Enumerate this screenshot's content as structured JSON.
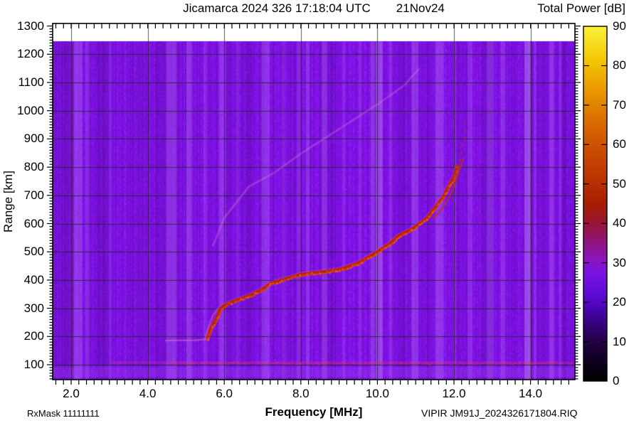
{
  "header": {
    "title_left": "Jicamarca 2024 326 17:18:04 UTC",
    "title_right": "21Nov24",
    "colorbar_title": "Total Power [dB]"
  },
  "axes": {
    "x_label": "Frequency [MHz]",
    "y_label": "Range [km]",
    "x_tick_labels": [
      "2.0",
      "4.0",
      "6.0",
      "8.0",
      "10.0",
      "12.0",
      "14.0"
    ],
    "y_tick_labels": [
      "100",
      "200",
      "300",
      "400",
      "500",
      "600",
      "700",
      "800",
      "900",
      "1000",
      "1100",
      "1200",
      "1300"
    ],
    "colorbar_tick_labels": [
      "0",
      "10",
      "20",
      "30",
      "40",
      "50",
      "60",
      "70",
      "80",
      "90"
    ]
  },
  "footer": {
    "rx_mask": "RxMask 11111111",
    "file_label": "VIPIR  JM91J_2024326171804.RIQ"
  },
  "chart_data": {
    "type": "heatmap",
    "subtype": "ionogram",
    "title": "Jicamarca 2024 326 17:18:04 UTC 21Nov24",
    "xlabel": "Frequency [MHz]",
    "ylabel": "Range [km]",
    "zlabel": "Total Power [dB]",
    "xlim": [
      1.52,
      15.16
    ],
    "ylim": [
      47,
      1309
    ],
    "zlim": [
      0,
      90
    ],
    "x_major_ticks": [
      2,
      4,
      6,
      8,
      10,
      12,
      14
    ],
    "y_major_ticks": [
      100,
      200,
      300,
      400,
      500,
      600,
      700,
      800,
      900,
      1000,
      1100,
      1200,
      1300
    ],
    "z_ticks": [
      0,
      10,
      20,
      30,
      40,
      50,
      60,
      70,
      80,
      90
    ],
    "x_minor_step": 0.2,
    "y_minor_step": 10,
    "grid": {
      "x_step_mhz": 2,
      "y_step_km": 100,
      "color": "rgba(25,40,18,0.75)"
    },
    "background_level_db": 22,
    "data_top_km": 1245,
    "colormap": [
      [
        0.0,
        "#000000"
      ],
      [
        0.06,
        "#10001f"
      ],
      [
        0.12,
        "#26004f"
      ],
      [
        0.17,
        "#3b0288"
      ],
      [
        0.22,
        "#5106c2"
      ],
      [
        0.27,
        "#6b0edd"
      ],
      [
        0.31,
        "#7d13dd"
      ],
      [
        0.345,
        "#8a16bb"
      ],
      [
        0.38,
        "#90148c"
      ],
      [
        0.42,
        "#951356"
      ],
      [
        0.46,
        "#9d1722"
      ],
      [
        0.5,
        "#a81e04"
      ],
      [
        0.58,
        "#bc3600"
      ],
      [
        0.66,
        "#cc4f00"
      ],
      [
        0.74,
        "#dc7000"
      ],
      [
        0.82,
        "#ea9800"
      ],
      [
        0.9,
        "#f4c404"
      ],
      [
        1.0,
        "#fbf238"
      ]
    ],
    "series": {
      "f_trace_flat": [
        [
          4.45,
          185
        ],
        [
          4.8,
          186
        ],
        [
          5.2,
          186
        ],
        [
          5.55,
          190
        ]
      ],
      "f_trace": [
        [
          5.55,
          190
        ],
        [
          5.65,
          230
        ],
        [
          5.75,
          252
        ],
        [
          5.9,
          300
        ],
        [
          6.0,
          310
        ],
        [
          6.3,
          328
        ],
        [
          6.65,
          344
        ],
        [
          7.0,
          368
        ],
        [
          7.2,
          387
        ],
        [
          7.5,
          400
        ],
        [
          8.0,
          420
        ],
        [
          8.5,
          428
        ],
        [
          9.0,
          437
        ],
        [
          9.5,
          460
        ],
        [
          10.0,
          500
        ],
        [
          10.3,
          527
        ],
        [
          10.55,
          556
        ],
        [
          10.9,
          580
        ],
        [
          11.3,
          620
        ],
        [
          11.55,
          665
        ],
        [
          11.7,
          690
        ],
        [
          11.85,
          730
        ],
        [
          12.0,
          765
        ],
        [
          12.1,
          808
        ]
      ],
      "f_trace_split": [
        [
          5.5,
          190
        ],
        [
          5.6,
          240
        ],
        [
          5.7,
          275
        ],
        [
          5.85,
          300
        ]
      ],
      "x_branch": [
        [
          11.45,
          615
        ],
        [
          11.7,
          655
        ],
        [
          11.9,
          700
        ],
        [
          12.05,
          748
        ],
        [
          12.15,
          792
        ],
        [
          12.25,
          830
        ]
      ],
      "spread_dots": [
        [
          12.15,
          825,
          0.8
        ],
        [
          12.2,
          850,
          0.7
        ],
        [
          12.23,
          878,
          0.6
        ],
        [
          12.28,
          902,
          0.5
        ],
        [
          12.3,
          928,
          0.4
        ],
        [
          12.27,
          955,
          0.3
        ]
      ],
      "second_hop": [
        [
          5.7,
          520
        ],
        [
          6.0,
          620
        ],
        [
          6.65,
          732
        ],
        [
          7.3,
          780
        ],
        [
          8.0,
          848
        ],
        [
          9.0,
          935
        ],
        [
          10.0,
          1022
        ],
        [
          10.7,
          1090
        ],
        [
          11.1,
          1150
        ]
      ],
      "e_layer": {
        "km": 107,
        "f_start": 3.0,
        "f_strong": 4.6,
        "f_end": 15.1
      },
      "low_band": {
        "km_low": 55,
        "km_high": 92
      }
    },
    "rfi_stripes": {
      "light": [
        [
          2.18,
          0.22,
          0.3
        ],
        [
          2.42,
          0.1,
          0.2
        ],
        [
          3.02,
          0.08,
          0.15
        ],
        [
          4.62,
          0.28,
          0.25
        ],
        [
          5.08,
          0.14,
          0.3
        ],
        [
          5.5,
          0.1,
          0.18
        ],
        [
          5.95,
          0.18,
          0.25
        ],
        [
          6.35,
          0.08,
          0.15
        ],
        [
          7.08,
          0.22,
          0.25
        ],
        [
          7.55,
          0.08,
          0.15
        ],
        [
          7.95,
          0.1,
          0.2
        ],
        [
          8.18,
          0.1,
          0.25
        ],
        [
          8.62,
          0.14,
          0.25
        ],
        [
          9.12,
          0.08,
          0.15
        ],
        [
          9.55,
          0.08,
          0.18
        ],
        [
          9.88,
          0.1,
          0.3
        ],
        [
          10.05,
          0.18,
          0.4
        ],
        [
          10.35,
          0.08,
          0.22
        ],
        [
          10.98,
          0.18,
          0.28
        ],
        [
          11.62,
          0.22,
          0.28
        ],
        [
          12.02,
          0.06,
          0.18
        ],
        [
          12.42,
          0.12,
          0.22
        ],
        [
          12.95,
          0.18,
          0.22
        ],
        [
          13.28,
          0.12,
          0.22
        ],
        [
          13.92,
          0.16,
          0.45
        ],
        [
          14.12,
          0.06,
          0.2
        ],
        [
          14.55,
          0.12,
          0.28
        ],
        [
          14.78,
          0.06,
          0.18
        ]
      ],
      "dark": [
        [
          2.75,
          0.25,
          0.1
        ],
        [
          3.6,
          0.3,
          0.06
        ],
        [
          4.28,
          0.18,
          0.08
        ],
        [
          6.62,
          0.18,
          0.07
        ],
        [
          8.85,
          0.12,
          0.07
        ],
        [
          10.62,
          0.16,
          0.1
        ],
        [
          11.3,
          0.1,
          0.07
        ],
        [
          13.55,
          0.1,
          0.08
        ],
        [
          14.95,
          0.2,
          0.08
        ]
      ]
    }
  }
}
